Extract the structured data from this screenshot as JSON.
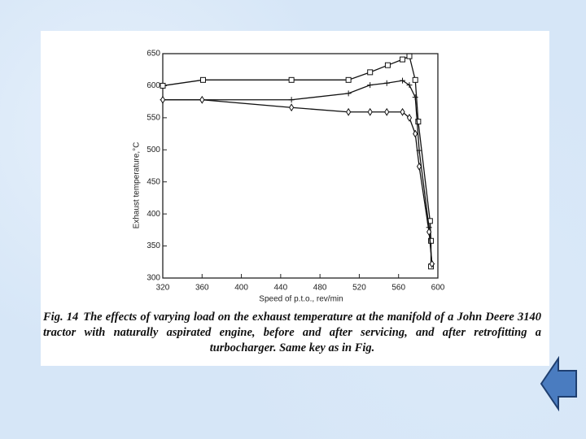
{
  "chart_data": {
    "type": "line",
    "xlabel": "Speed of p.t.o., rev/min",
    "ylabel": "Exhaust temperature,°C",
    "caption_label": "Fig. 14",
    "caption": "The effects of varying load on the exhaust temperature at the manifold of a John Deere 3140 tractor with naturally aspirated engine, before and after servicing, and after retrofitting a turbocharger. Same key as in Fig.",
    "xlim": [
      320,
      600
    ],
    "xticks": [
      320,
      360,
      400,
      440,
      480,
      520,
      560,
      600
    ],
    "ylim": [
      300,
      650
    ],
    "yticks": [
      300,
      350,
      400,
      450,
      500,
      550,
      600,
      650
    ],
    "series": [
      {
        "marker": "square",
        "color": "#111111",
        "x": [
          320,
          361,
          451,
          509,
          531,
          549,
          564,
          571,
          577,
          580,
          592,
          593,
          593
        ],
        "values": [
          600,
          609,
          609,
          609,
          621,
          632,
          641,
          646,
          609,
          544,
          389,
          358,
          318
        ]
      },
      {
        "marker": "plus",
        "color": "#111111",
        "x": [
          320,
          360,
          451,
          509,
          531,
          548,
          564,
          571,
          577,
          581,
          591,
          594
        ],
        "values": [
          578,
          578,
          578,
          588,
          601,
          604,
          608,
          601,
          582,
          499,
          379,
          322
        ]
      },
      {
        "marker": "diamond",
        "color": "#111111",
        "x": [
          320,
          360,
          451,
          509,
          531,
          548,
          564,
          571,
          577,
          581,
          591,
          594
        ],
        "values": [
          578,
          578,
          566,
          559,
          559,
          559,
          559,
          550,
          525,
          474,
          372,
          322
        ]
      }
    ]
  }
}
